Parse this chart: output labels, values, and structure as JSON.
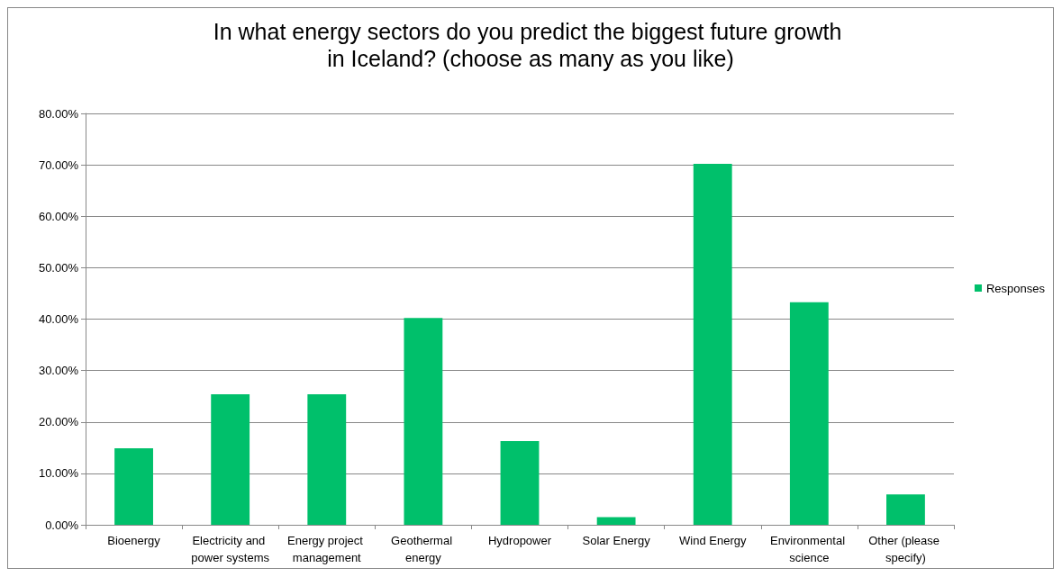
{
  "chart_data": {
    "type": "bar",
    "title": "In what energy sectors do you predict the biggest future growth in Iceland? (choose as many as you like)",
    "categories": [
      "Bioenergy",
      "Electricity and power systems",
      "Energy project management",
      "Geothermal energy",
      "Hydropower",
      "Solar Energy",
      "Wind Energy",
      "Environmental science",
      "Other (please specify)"
    ],
    "series": [
      {
        "name": "Responses",
        "color": "#00c06b",
        "values": [
          14.9,
          25.4,
          25.4,
          40.2,
          16.3,
          1.5,
          70.2,
          43.3,
          5.9
        ]
      }
    ],
    "ylim": [
      0,
      80
    ],
    "yticks": [
      {
        "value": 0,
        "label": "0.00%"
      },
      {
        "value": 10,
        "label": "10.00%"
      },
      {
        "value": 20,
        "label": "20.00%"
      },
      {
        "value": 30,
        "label": "30.00%"
      },
      {
        "value": 40,
        "label": "40.00%"
      },
      {
        "value": 50,
        "label": "50.00%"
      },
      {
        "value": 60,
        "label": "60.00%"
      },
      {
        "value": 70,
        "label": "70.00%"
      },
      {
        "value": 80,
        "label": "80.00%"
      }
    ],
    "grid": "y",
    "legend": "right"
  }
}
